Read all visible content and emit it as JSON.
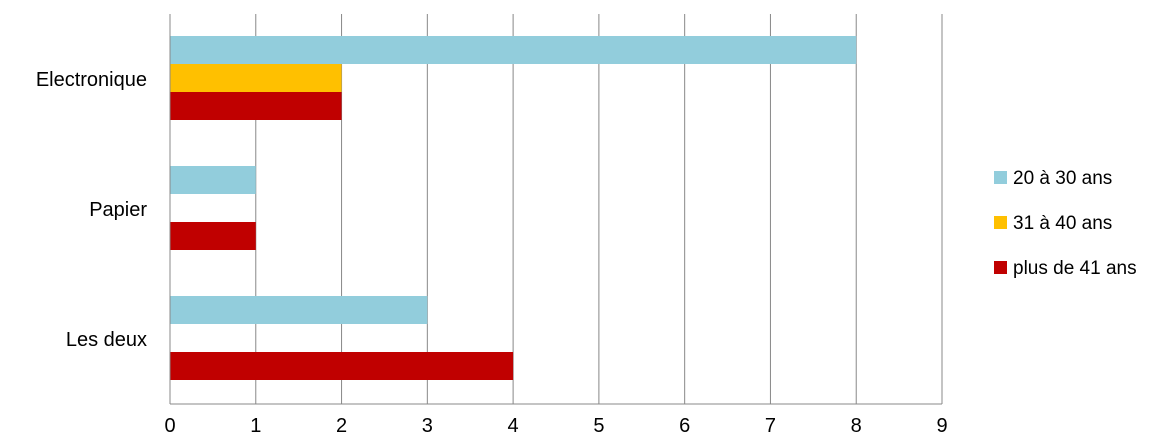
{
  "chart_data": {
    "type": "bar",
    "orientation": "horizontal",
    "categories": [
      "Electronique",
      "Papier",
      "Les deux"
    ],
    "series": [
      {
        "name": "20 à 30 ans",
        "color": "#92CDDC",
        "values": [
          8,
          1,
          3
        ]
      },
      {
        "name": "31 à 40 ans",
        "color": "#FFC000",
        "values": [
          2,
          0,
          0
        ]
      },
      {
        "name": "plus de 41 ans",
        "color": "#C00000",
        "values": [
          2,
          1,
          4
        ]
      }
    ],
    "x_ticks": [
      "0",
      "1",
      "2",
      "3",
      "4",
      "5",
      "6",
      "7",
      "8",
      "9"
    ],
    "xlim": [
      0,
      9
    ],
    "grid": true,
    "legend_position": "right"
  }
}
